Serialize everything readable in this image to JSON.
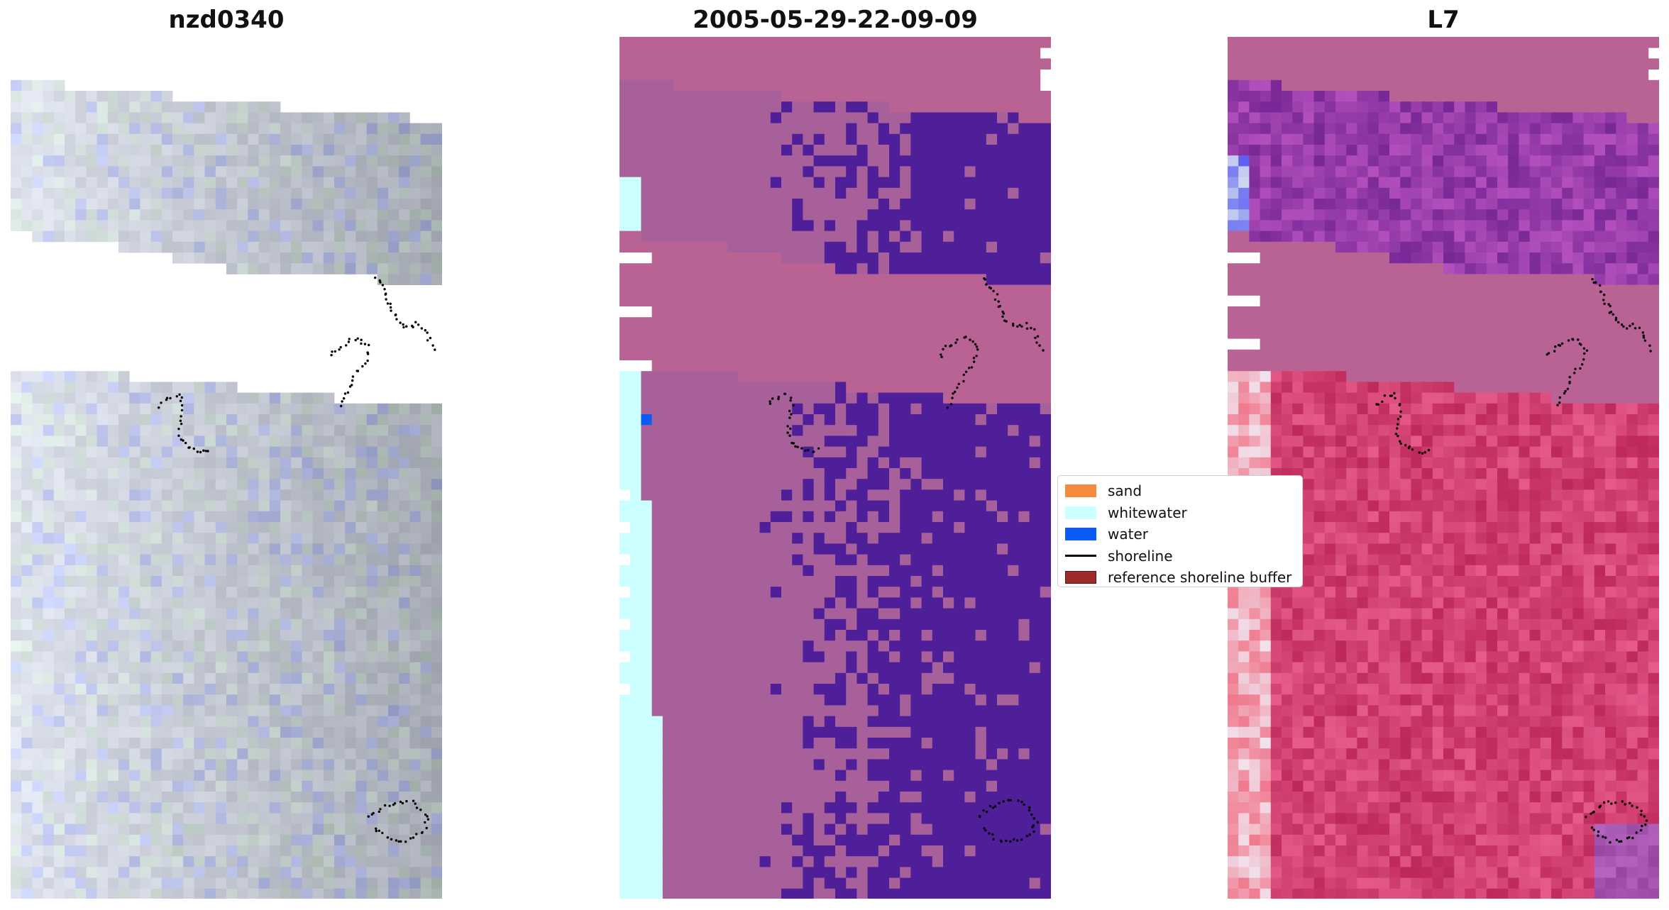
{
  "panels": [
    {
      "title": "nzd0340",
      "kind": "rgb"
    },
    {
      "title": "2005-05-29-22-09-09",
      "kind": "classification"
    },
    {
      "title": "L7",
      "kind": "mndwi"
    }
  ],
  "legend": {
    "items": [
      {
        "label": "sand",
        "color": "#f58b3c",
        "type": "patch"
      },
      {
        "label": "whitewater",
        "color": "#ccffff",
        "type": "patch"
      },
      {
        "label": "water",
        "color": "#0b5cf6",
        "type": "patch"
      },
      {
        "label": "shoreline",
        "color": "#000000",
        "type": "line"
      },
      {
        "label": "reference shoreline buffer",
        "color": "#9e2a2a",
        "type": "patch"
      }
    ]
  },
  "colors": {
    "buffer_magenta": "#b96395",
    "water_purple": "#4f1f99",
    "land_mauve": "#a8609a",
    "whitewater_cyan": "#ccffff",
    "water_blue": "#0b5cf6",
    "rgb_haze": "#c9cfe0",
    "shoreline_dot": "#000000"
  }
}
